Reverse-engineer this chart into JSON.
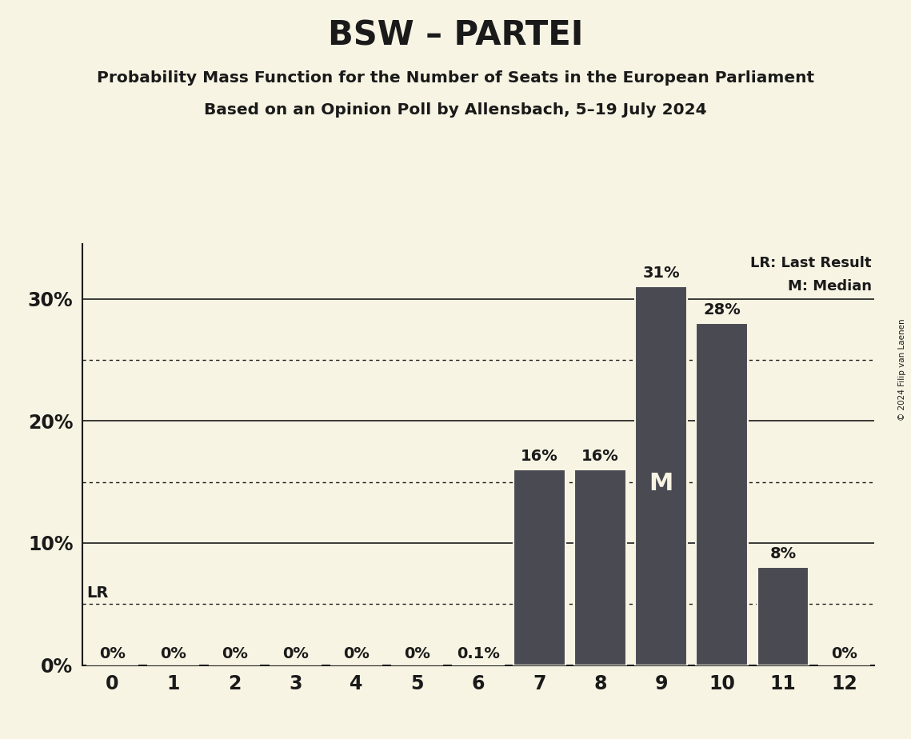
{
  "title": "BSW – PARTEI",
  "subtitle1": "Probability Mass Function for the Number of Seats in the European Parliament",
  "subtitle2": "Based on an Opinion Poll by Allensbach, 5–19 July 2024",
  "copyright": "© 2024 Filip van Laenen",
  "categories": [
    0,
    1,
    2,
    3,
    4,
    5,
    6,
    7,
    8,
    9,
    10,
    11,
    12
  ],
  "values": [
    0.0,
    0.0,
    0.0,
    0.0,
    0.0,
    0.0,
    0.001,
    0.16,
    0.16,
    0.31,
    0.28,
    0.08,
    0.0
  ],
  "labels": [
    "0%",
    "0%",
    "0%",
    "0%",
    "0%",
    "0%",
    "0.1%",
    "16%",
    "16%",
    "31%",
    "28%",
    "8%",
    "0%"
  ],
  "bar_color": "#4a4a52",
  "background_color": "#f8f4e3",
  "text_color": "#1a1a1a",
  "bar_edge_color": "#f8f4e3",
  "median_seat": 9,
  "median_label": "M",
  "lr_level": 0.05,
  "lr_label": "LR",
  "legend_lr": "LR: Last Result",
  "legend_m": "M: Median",
  "yticks": [
    0.0,
    0.1,
    0.2,
    0.3
  ],
  "ytick_labels": [
    "0%",
    "10%",
    "20%",
    "30%"
  ],
  "dotted_lines": [
    0.05,
    0.15,
    0.25
  ],
  "ylim": [
    0,
    0.345
  ],
  "xlim": [
    -0.5,
    12.5
  ]
}
